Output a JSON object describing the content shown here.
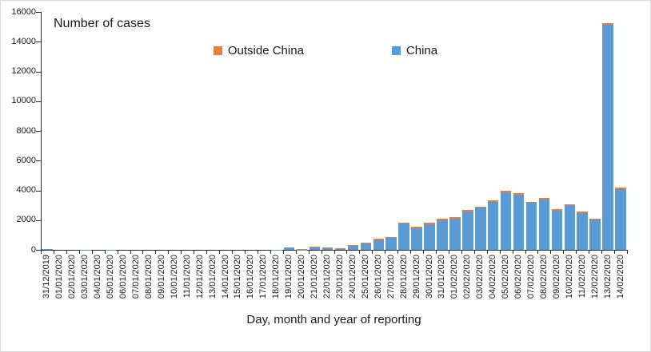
{
  "chart_data": {
    "type": "bar",
    "stacked": true,
    "title": "Number of cases",
    "xlabel": "Day, month and year of reporting",
    "ylabel": "",
    "ylim": [
      0,
      16000
    ],
    "ytick_step": 2000,
    "grid": false,
    "legend_position": "top-center",
    "frame_border_color": "#d9d9d9",
    "axis_color": "#2b2b2b",
    "categories": [
      "31/12/2019",
      "01/01/2020",
      "02/01/2020",
      "03/01/2020",
      "04/01/2020",
      "05/01/2020",
      "06/01/2020",
      "07/01/2020",
      "08/01/2020",
      "09/01/2020",
      "10/01/2020",
      "11/01/2020",
      "12/01/2020",
      "13/01/2020",
      "14/01/2020",
      "15/01/2020",
      "16/01/2020",
      "17/01/2020",
      "18/01/2020",
      "19/01/2020",
      "20/01/2020",
      "21/01/2020",
      "22/01/2020",
      "23/01/2020",
      "24/01/2020",
      "25/01/2020",
      "26/01/2020",
      "27/01/2020",
      "28/01/2020",
      "29/01/2020",
      "30/01/2020",
      "31/01/2020",
      "01/02/2020",
      "02/02/2020",
      "03/02/2020",
      "04/02/2020",
      "05/02/2020",
      "06/02/2020",
      "07/02/2020",
      "08/02/2020",
      "09/02/2020",
      "10/02/2020",
      "11/02/2020",
      "12/02/2020",
      "13/02/2020",
      "14/02/2020"
    ],
    "series": [
      {
        "name": "Outside China",
        "color": "#ED7D31",
        "values": [
          0,
          0,
          0,
          0,
          0,
          0,
          0,
          0,
          0,
          0,
          0,
          0,
          0,
          0,
          0,
          0,
          0,
          0,
          0,
          0,
          40,
          50,
          45,
          15,
          55,
          60,
          70,
          65,
          85,
          80,
          85,
          90,
          90,
          95,
          90,
          90,
          95,
          90,
          95,
          95,
          90,
          95,
          95,
          90,
          130,
          110
        ]
      },
      {
        "name": "China",
        "color": "#5B9BD5",
        "values": [
          27,
          0,
          0,
          17,
          0,
          15,
          0,
          0,
          0,
          0,
          0,
          0,
          0,
          0,
          0,
          0,
          0,
          4,
          17,
          136,
          19,
          151,
          140,
          97,
          259,
          441,
          665,
          787,
          1753,
          1466,
          1739,
          1984,
          2101,
          2590,
          2827,
          3233,
          3892,
          3697,
          3151,
          3387,
          2653,
          2984,
          2473,
          2022,
          15141,
          4100
        ]
      }
    ]
  }
}
